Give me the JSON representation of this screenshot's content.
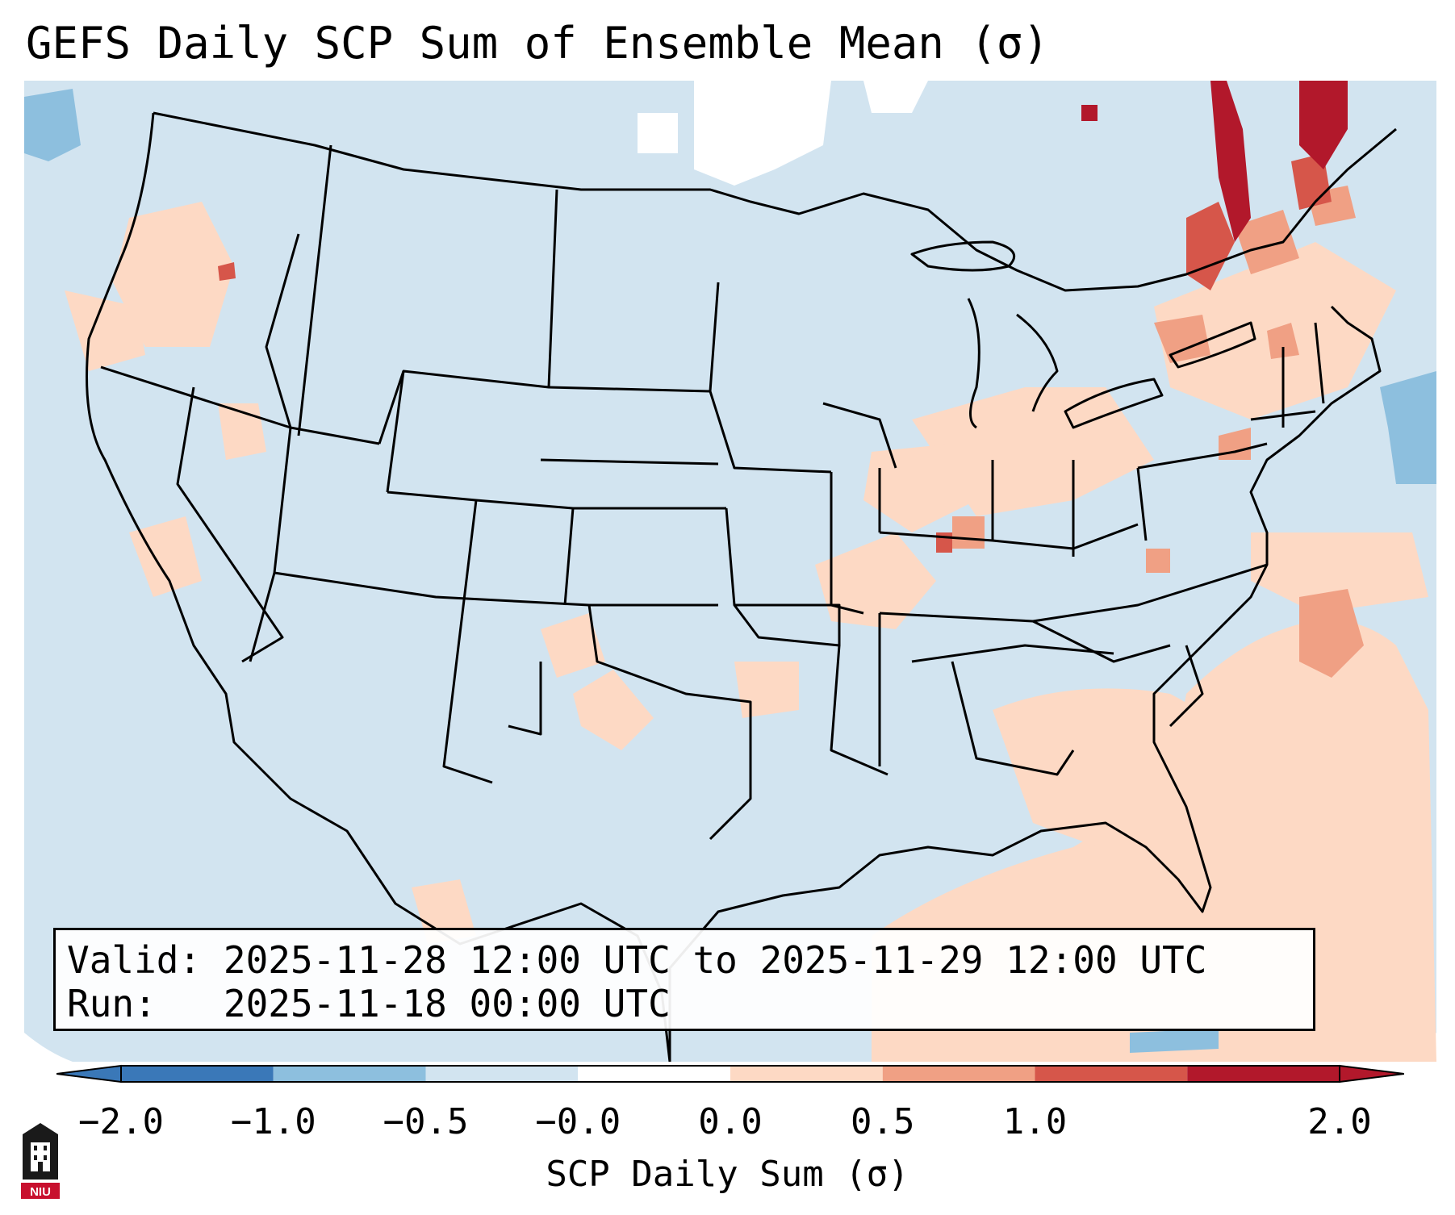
{
  "title": "GEFS Daily SCP Sum of Ensemble Mean (σ)",
  "info": {
    "valid_label": "Valid:",
    "valid_text": "2025-11-28 12:00 UTC to 2025-11-29 12:00 UTC",
    "run_label": "Run:",
    "run_text": "2025-11-18 00:00 UTC"
  },
  "colorbar": {
    "label": "SCP Daily Sum (σ)",
    "ticks": [
      "−2.0",
      "−1.0",
      "−0.5",
      "−0.0",
      "0.0",
      "0.5",
      "1.0",
      "2.0"
    ],
    "colors": [
      "#3a78b8",
      "#8dbfde",
      "#d2e4f0",
      "#ffffff",
      "#fdd9c4",
      "#f0a084",
      "#d6564a",
      "#b2182b"
    ]
  },
  "logo": {
    "text": "NIU",
    "icon": "niu-logo"
  },
  "map": {
    "base_color": "#d2e4f0",
    "land_outline": "#000000",
    "region": "Contiguous United States"
  }
}
